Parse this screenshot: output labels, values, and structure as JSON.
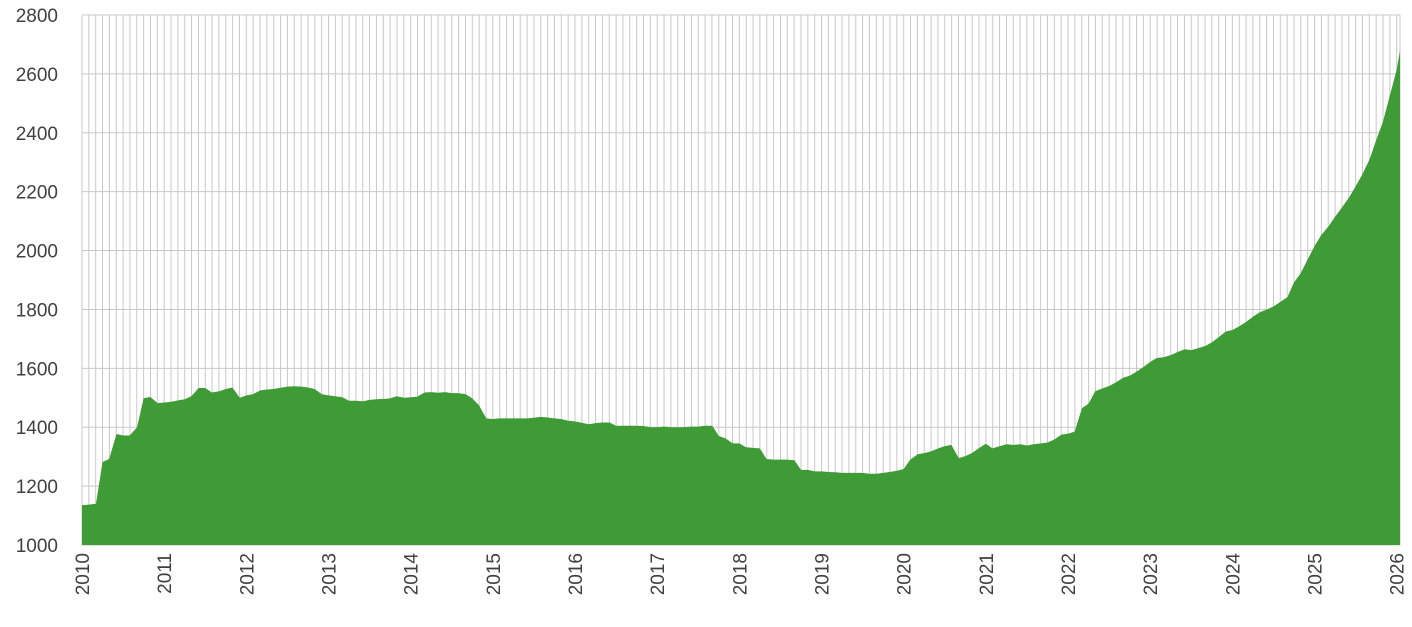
{
  "chart_data": {
    "type": "area",
    "title": "",
    "xlabel": "",
    "ylabel": "",
    "ylim": [
      1000,
      2800
    ],
    "yticks": [
      "1000",
      "1200",
      "1400",
      "1600",
      "1800",
      "2000",
      "2200",
      "2400",
      "2600",
      "2800"
    ],
    "xticks": [
      "2010",
      "2011",
      "2012",
      "2013",
      "2014",
      "2015",
      "2016",
      "2017",
      "2018",
      "2019",
      "2020",
      "2021",
      "2022",
      "2023",
      "2024",
      "2025",
      "2026"
    ],
    "grid": "vertical monthly lines and horizontal lines at y ticks",
    "legend": "none",
    "color": "#3f9b35",
    "series": [
      {
        "points": [
          [
            2010.0,
            1135
          ],
          [
            2010.08,
            1137
          ],
          [
            2010.17,
            1140
          ],
          [
            2010.25,
            1282
          ],
          [
            2010.33,
            1292
          ],
          [
            2010.42,
            1377
          ],
          [
            2010.5,
            1372
          ],
          [
            2010.58,
            1372
          ],
          [
            2010.67,
            1400
          ],
          [
            2010.75,
            1498
          ],
          [
            2010.83,
            1503
          ],
          [
            2010.92,
            1482
          ],
          [
            2011.0,
            1484
          ],
          [
            2011.08,
            1486
          ],
          [
            2011.17,
            1491
          ],
          [
            2011.25,
            1495
          ],
          [
            2011.33,
            1505
          ],
          [
            2011.42,
            1533
          ],
          [
            2011.5,
            1533
          ],
          [
            2011.58,
            1518
          ],
          [
            2011.67,
            1522
          ],
          [
            2011.75,
            1530
          ],
          [
            2011.83,
            1535
          ],
          [
            2011.92,
            1500
          ],
          [
            2012.0,
            1508
          ],
          [
            2012.08,
            1512
          ],
          [
            2012.17,
            1525
          ],
          [
            2012.25,
            1528
          ],
          [
            2012.33,
            1530
          ],
          [
            2012.42,
            1534
          ],
          [
            2012.5,
            1538
          ],
          [
            2012.58,
            1539
          ],
          [
            2012.67,
            1538
          ],
          [
            2012.75,
            1535
          ],
          [
            2012.83,
            1530
          ],
          [
            2012.92,
            1512
          ],
          [
            2013.0,
            1508
          ],
          [
            2013.08,
            1505
          ],
          [
            2013.17,
            1502
          ],
          [
            2013.25,
            1490
          ],
          [
            2013.33,
            1490
          ],
          [
            2013.42,
            1488
          ],
          [
            2013.5,
            1493
          ],
          [
            2013.58,
            1495
          ],
          [
            2013.67,
            1496
          ],
          [
            2013.75,
            1498
          ],
          [
            2013.83,
            1505
          ],
          [
            2013.92,
            1500
          ],
          [
            2014.0,
            1502
          ],
          [
            2014.08,
            1504
          ],
          [
            2014.17,
            1518
          ],
          [
            2014.25,
            1519
          ],
          [
            2014.33,
            1517
          ],
          [
            2014.42,
            1519
          ],
          [
            2014.5,
            1516
          ],
          [
            2014.58,
            1516
          ],
          [
            2014.67,
            1512
          ],
          [
            2014.75,
            1498
          ],
          [
            2014.83,
            1475
          ],
          [
            2014.92,
            1430
          ],
          [
            2015.0,
            1428
          ],
          [
            2015.08,
            1430
          ],
          [
            2015.17,
            1430
          ],
          [
            2015.25,
            1430
          ],
          [
            2015.33,
            1430
          ],
          [
            2015.42,
            1430
          ],
          [
            2015.5,
            1432
          ],
          [
            2015.58,
            1435
          ],
          [
            2015.67,
            1433
          ],
          [
            2015.75,
            1430
          ],
          [
            2015.83,
            1428
          ],
          [
            2015.92,
            1422
          ],
          [
            2016.0,
            1420
          ],
          [
            2016.08,
            1415
          ],
          [
            2016.17,
            1410
          ],
          [
            2016.25,
            1414
          ],
          [
            2016.33,
            1416
          ],
          [
            2016.42,
            1416
          ],
          [
            2016.5,
            1405
          ],
          [
            2016.58,
            1405
          ],
          [
            2016.67,
            1405
          ],
          [
            2016.75,
            1405
          ],
          [
            2016.83,
            1404
          ],
          [
            2016.92,
            1400
          ],
          [
            2017.0,
            1400
          ],
          [
            2017.08,
            1402
          ],
          [
            2017.17,
            1400
          ],
          [
            2017.25,
            1400
          ],
          [
            2017.33,
            1400
          ],
          [
            2017.42,
            1402
          ],
          [
            2017.5,
            1402
          ],
          [
            2017.58,
            1405
          ],
          [
            2017.67,
            1405
          ],
          [
            2017.75,
            1370
          ],
          [
            2017.83,
            1362
          ],
          [
            2017.92,
            1345
          ],
          [
            2018.0,
            1345
          ],
          [
            2018.08,
            1332
          ],
          [
            2018.17,
            1330
          ],
          [
            2018.25,
            1328
          ],
          [
            2018.33,
            1292
          ],
          [
            2018.42,
            1290
          ],
          [
            2018.5,
            1290
          ],
          [
            2018.58,
            1290
          ],
          [
            2018.67,
            1288
          ],
          [
            2018.75,
            1255
          ],
          [
            2018.83,
            1255
          ],
          [
            2018.92,
            1250
          ],
          [
            2019.0,
            1250
          ],
          [
            2019.08,
            1248
          ],
          [
            2019.17,
            1247
          ],
          [
            2019.25,
            1245
          ],
          [
            2019.33,
            1245
          ],
          [
            2019.42,
            1245
          ],
          [
            2019.5,
            1245
          ],
          [
            2019.58,
            1242
          ],
          [
            2019.67,
            1242
          ],
          [
            2019.75,
            1245
          ],
          [
            2019.83,
            1248
          ],
          [
            2019.92,
            1252
          ],
          [
            2020.0,
            1258
          ],
          [
            2020.08,
            1290
          ],
          [
            2020.17,
            1308
          ],
          [
            2020.25,
            1312
          ],
          [
            2020.33,
            1318
          ],
          [
            2020.42,
            1328
          ],
          [
            2020.5,
            1336
          ],
          [
            2020.58,
            1340
          ],
          [
            2020.67,
            1295
          ],
          [
            2020.75,
            1302
          ],
          [
            2020.83,
            1312
          ],
          [
            2020.92,
            1330
          ],
          [
            2021.0,
            1344
          ],
          [
            2021.08,
            1328
          ],
          [
            2021.17,
            1336
          ],
          [
            2021.25,
            1342
          ],
          [
            2021.33,
            1340
          ],
          [
            2021.42,
            1342
          ],
          [
            2021.5,
            1338
          ],
          [
            2021.58,
            1342
          ],
          [
            2021.67,
            1345
          ],
          [
            2021.75,
            1348
          ],
          [
            2021.83,
            1358
          ],
          [
            2021.92,
            1375
          ],
          [
            2022.0,
            1378
          ],
          [
            2022.08,
            1385
          ],
          [
            2022.17,
            1465
          ],
          [
            2022.25,
            1480
          ],
          [
            2022.33,
            1522
          ],
          [
            2022.42,
            1532
          ],
          [
            2022.5,
            1540
          ],
          [
            2022.58,
            1552
          ],
          [
            2022.67,
            1568
          ],
          [
            2022.75,
            1575
          ],
          [
            2022.83,
            1588
          ],
          [
            2022.92,
            1605
          ],
          [
            2023.0,
            1622
          ],
          [
            2023.08,
            1635
          ],
          [
            2023.17,
            1638
          ],
          [
            2023.25,
            1645
          ],
          [
            2023.33,
            1655
          ],
          [
            2023.42,
            1665
          ],
          [
            2023.5,
            1662
          ],
          [
            2023.58,
            1668
          ],
          [
            2023.67,
            1676
          ],
          [
            2023.75,
            1688
          ],
          [
            2023.83,
            1705
          ],
          [
            2023.92,
            1725
          ],
          [
            2024.0,
            1730
          ],
          [
            2024.08,
            1742
          ],
          [
            2024.17,
            1758
          ],
          [
            2024.25,
            1775
          ],
          [
            2024.33,
            1790
          ],
          [
            2024.42,
            1800
          ],
          [
            2024.5,
            1810
          ],
          [
            2024.58,
            1825
          ],
          [
            2024.67,
            1842
          ],
          [
            2024.75,
            1892
          ],
          [
            2024.83,
            1922
          ],
          [
            2024.92,
            1972
          ],
          [
            2025.0,
            2015
          ],
          [
            2025.08,
            2052
          ],
          [
            2025.17,
            2082
          ],
          [
            2025.25,
            2115
          ],
          [
            2025.33,
            2145
          ],
          [
            2025.42,
            2180
          ],
          [
            2025.5,
            2218
          ],
          [
            2025.58,
            2258
          ],
          [
            2025.67,
            2310
          ],
          [
            2025.75,
            2375
          ],
          [
            2025.83,
            2435
          ],
          [
            2025.92,
            2530
          ],
          [
            2026.0,
            2615
          ],
          [
            2026.04,
            2680
          ]
        ]
      }
    ]
  }
}
